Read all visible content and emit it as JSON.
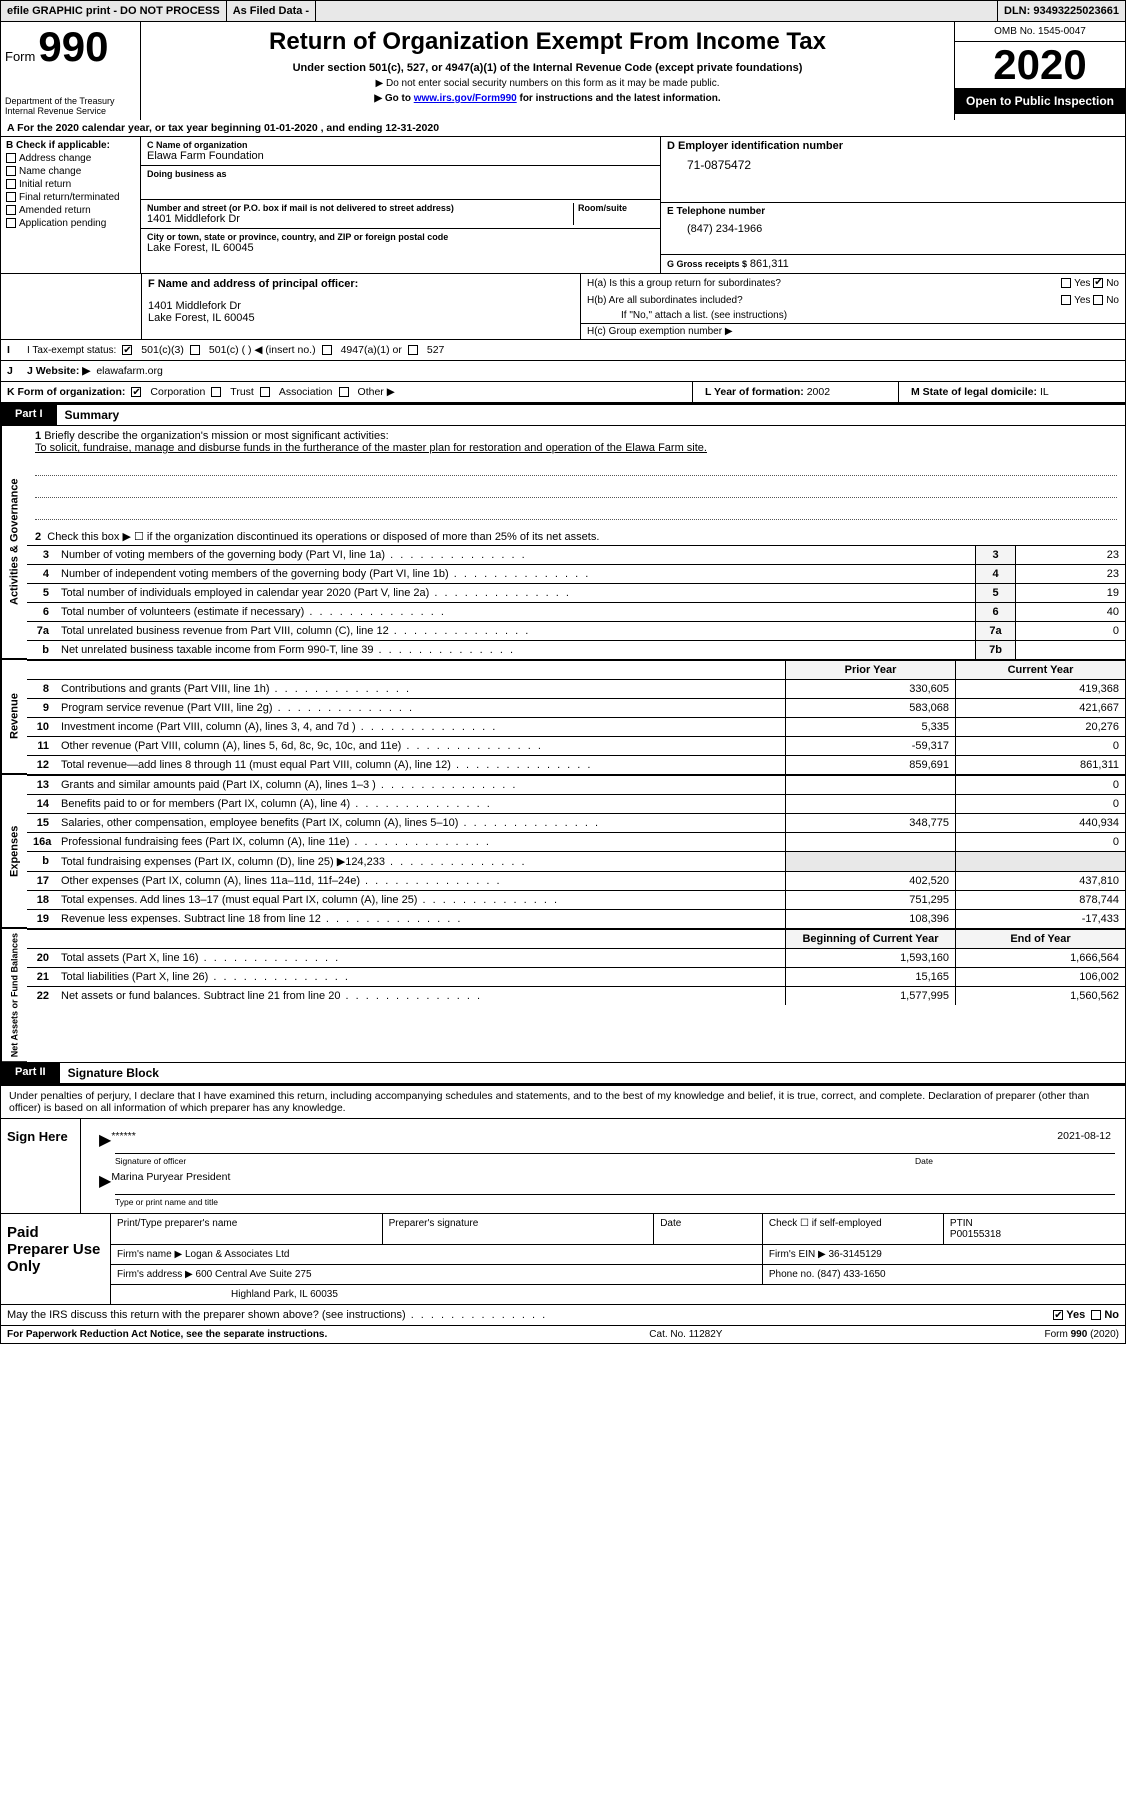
{
  "top": {
    "efile": "efile GRAPHIC print - DO NOT PROCESS",
    "asfiled": "As Filed Data -",
    "dln_label": "DLN:",
    "dln": "93493225023661"
  },
  "hdr": {
    "form_word": "Form",
    "form_num": "990",
    "dept": "Department of the Treasury\nInternal Revenue Service",
    "title": "Return of Organization Exempt From Income Tax",
    "subtitle": "Under section 501(c), 527, or 4947(a)(1) of the Internal Revenue Code (except private foundations)",
    "note1": "▶ Do not enter social security numbers on this form as it may be made public.",
    "note2_pre": "▶ Go to ",
    "note2_link": "www.irs.gov/Form990",
    "note2_post": " for instructions and the latest information.",
    "omb": "OMB No. 1545-0047",
    "year": "2020",
    "open": "Open to Public Inspection"
  },
  "rowA": "A   For the 2020 calendar year, or tax year beginning 01-01-2020   , and ending 12-31-2020",
  "b": {
    "hdr": "B Check if applicable:",
    "items": [
      "Address change",
      "Name change",
      "Initial return",
      "Final return/terminated",
      "Amended return",
      "Application pending"
    ]
  },
  "c": {
    "name_lbl": "C Name of organization",
    "name": "Elawa Farm Foundation",
    "dba_lbl": "Doing business as",
    "street_lbl": "Number and street (or P.O. box if mail is not delivered to street address)",
    "room_lbl": "Room/suite",
    "street": "1401 Middlefork Dr",
    "city_lbl": "City or town, state or province, country, and ZIP or foreign postal code",
    "city": "Lake Forest, IL  60045"
  },
  "d": {
    "ein_lbl": "D Employer identification number",
    "ein": "71-0875472",
    "phone_lbl": "E Telephone number",
    "phone": "(847) 234-1966",
    "gross_lbl": "G Gross receipts $",
    "gross": "861,311"
  },
  "f": {
    "lbl": "F  Name and address of principal officer:",
    "line1": "1401 Middlefork Dr",
    "line2": "Lake Forest, IL  60045"
  },
  "h": {
    "a": "H(a)  Is this a group return for subordinates?",
    "b": "H(b)  Are all subordinates included?",
    "bnote": "If \"No,\" attach a list. (see instructions)",
    "c": "H(c)  Group exemption number ▶",
    "yes": "Yes",
    "no": "No"
  },
  "i": {
    "lbl": "I   Tax-exempt status:",
    "o1": "501(c)(3)",
    "o2": "501(c) (   ) ◀ (insert no.)",
    "o3": "4947(a)(1) or",
    "o4": "527"
  },
  "j": {
    "lbl": "J   Website: ▶",
    "val": "elawafarm.org"
  },
  "k": {
    "lbl": "K Form of organization:",
    "o1": "Corporation",
    "o2": "Trust",
    "o3": "Association",
    "o4": "Other ▶"
  },
  "l": {
    "lbl": "L Year of formation:",
    "val": "2002"
  },
  "m": {
    "lbl": "M State of legal domicile:",
    "val": "IL"
  },
  "part1": {
    "tag": "Part I",
    "title": "Summary"
  },
  "mission": {
    "n": "1",
    "lbl": "Briefly describe the organization's mission or most significant activities:",
    "txt": "To solicit, fundraise, manage and disburse funds in the furtherance of the master plan for restoration and operation of the Elawa Farm site."
  },
  "gov": {
    "label": "Activities & Governance",
    "l2": "Check this box ▶ ☐ if the organization discontinued its operations or disposed of more than 25% of its net assets.",
    "rows": [
      {
        "n": "3",
        "t": "Number of voting members of the governing body (Part VI, line 1a)",
        "box": "3",
        "v": "23"
      },
      {
        "n": "4",
        "t": "Number of independent voting members of the governing body (Part VI, line 1b)",
        "box": "4",
        "v": "23"
      },
      {
        "n": "5",
        "t": "Total number of individuals employed in calendar year 2020 (Part V, line 2a)",
        "box": "5",
        "v": "19"
      },
      {
        "n": "6",
        "t": "Total number of volunteers (estimate if necessary)",
        "box": "6",
        "v": "40"
      },
      {
        "n": "7a",
        "t": "Total unrelated business revenue from Part VIII, column (C), line 12",
        "box": "7a",
        "v": "0"
      },
      {
        "n": "b",
        "t": "Net unrelated business taxable income from Form 990-T, line 39",
        "box": "7b",
        "v": ""
      }
    ]
  },
  "rev": {
    "label": "Revenue",
    "h1": "Prior Year",
    "h2": "Current Year",
    "rows": [
      {
        "n": "8",
        "t": "Contributions and grants (Part VIII, line 1h)",
        "c1": "330,605",
        "c2": "419,368"
      },
      {
        "n": "9",
        "t": "Program service revenue (Part VIII, line 2g)",
        "c1": "583,068",
        "c2": "421,667"
      },
      {
        "n": "10",
        "t": "Investment income (Part VIII, column (A), lines 3, 4, and 7d )",
        "c1": "5,335",
        "c2": "20,276"
      },
      {
        "n": "11",
        "t": "Other revenue (Part VIII, column (A), lines 5, 6d, 8c, 9c, 10c, and 11e)",
        "c1": "-59,317",
        "c2": "0"
      },
      {
        "n": "12",
        "t": "Total revenue—add lines 8 through 11 (must equal Part VIII, column (A), line 12)",
        "c1": "859,691",
        "c2": "861,311"
      }
    ]
  },
  "exp": {
    "label": "Expenses",
    "rows": [
      {
        "n": "13",
        "t": "Grants and similar amounts paid (Part IX, column (A), lines 1–3 )",
        "c1": "",
        "c2": "0"
      },
      {
        "n": "14",
        "t": "Benefits paid to or for members (Part IX, column (A), line 4)",
        "c1": "",
        "c2": "0"
      },
      {
        "n": "15",
        "t": "Salaries, other compensation, employee benefits (Part IX, column (A), lines 5–10)",
        "c1": "348,775",
        "c2": "440,934"
      },
      {
        "n": "16a",
        "t": "Professional fundraising fees (Part IX, column (A), line 11e)",
        "c1": "",
        "c2": "0"
      },
      {
        "n": "b",
        "t": "Total fundraising expenses (Part IX, column (D), line 25) ▶124,233",
        "c1": "",
        "c2": "",
        "shaded": true
      },
      {
        "n": "17",
        "t": "Other expenses (Part IX, column (A), lines 11a–11d, 11f–24e)",
        "c1": "402,520",
        "c2": "437,810"
      },
      {
        "n": "18",
        "t": "Total expenses. Add lines 13–17 (must equal Part IX, column (A), line 25)",
        "c1": "751,295",
        "c2": "878,744"
      },
      {
        "n": "19",
        "t": "Revenue less expenses. Subtract line 18 from line 12",
        "c1": "108,396",
        "c2": "-17,433"
      }
    ]
  },
  "na": {
    "label": "Net Assets or Fund Balances",
    "h1": "Beginning of Current Year",
    "h2": "End of Year",
    "rows": [
      {
        "n": "20",
        "t": "Total assets (Part X, line 16)",
        "c1": "1,593,160",
        "c2": "1,666,564"
      },
      {
        "n": "21",
        "t": "Total liabilities (Part X, line 26)",
        "c1": "15,165",
        "c2": "106,002"
      },
      {
        "n": "22",
        "t": "Net assets or fund balances. Subtract line 21 from line 20",
        "c1": "1,577,995",
        "c2": "1,560,562"
      }
    ]
  },
  "part2": {
    "tag": "Part II",
    "title": "Signature Block"
  },
  "perjury": "Under penalties of perjury, I declare that I have examined this return, including accompanying schedules and statements, and to the best of my knowledge and belief, it is true, correct, and complete. Declaration of preparer (other than officer) is based on all information of which preparer has any knowledge.",
  "sign": {
    "here": "Sign Here",
    "stars": "******",
    "sigcap": "Signature of officer",
    "date": "2021-08-12",
    "datecap": "Date",
    "name": "Marina Puryear President",
    "namecap": "Type or print name and title"
  },
  "prep": {
    "here": "Paid Preparer Use Only",
    "r1": {
      "c1": "Print/Type preparer's name",
      "c2": "Preparer's signature",
      "c3": "Date",
      "c4": "Check ☐ if self-employed",
      "c5": "PTIN",
      "c5v": "P00155318"
    },
    "r2": {
      "lbl": "Firm's name    ▶",
      "val": "Logan & Associates Ltd",
      "einlbl": "Firm's EIN ▶",
      "ein": "36-3145129"
    },
    "r3": {
      "lbl": "Firm's address ▶",
      "val": "600 Central Ave Suite 275",
      "phlbl": "Phone no.",
      "ph": "(847) 433-1650"
    },
    "r3b": "Highland Park, IL  60035"
  },
  "discuss": "May the IRS discuss this return with the preparer shown above? (see instructions)",
  "footer": {
    "l": "For Paperwork Reduction Act Notice, see the separate instructions.",
    "m": "Cat. No. 11282Y",
    "r": "Form 990 (2020)"
  }
}
